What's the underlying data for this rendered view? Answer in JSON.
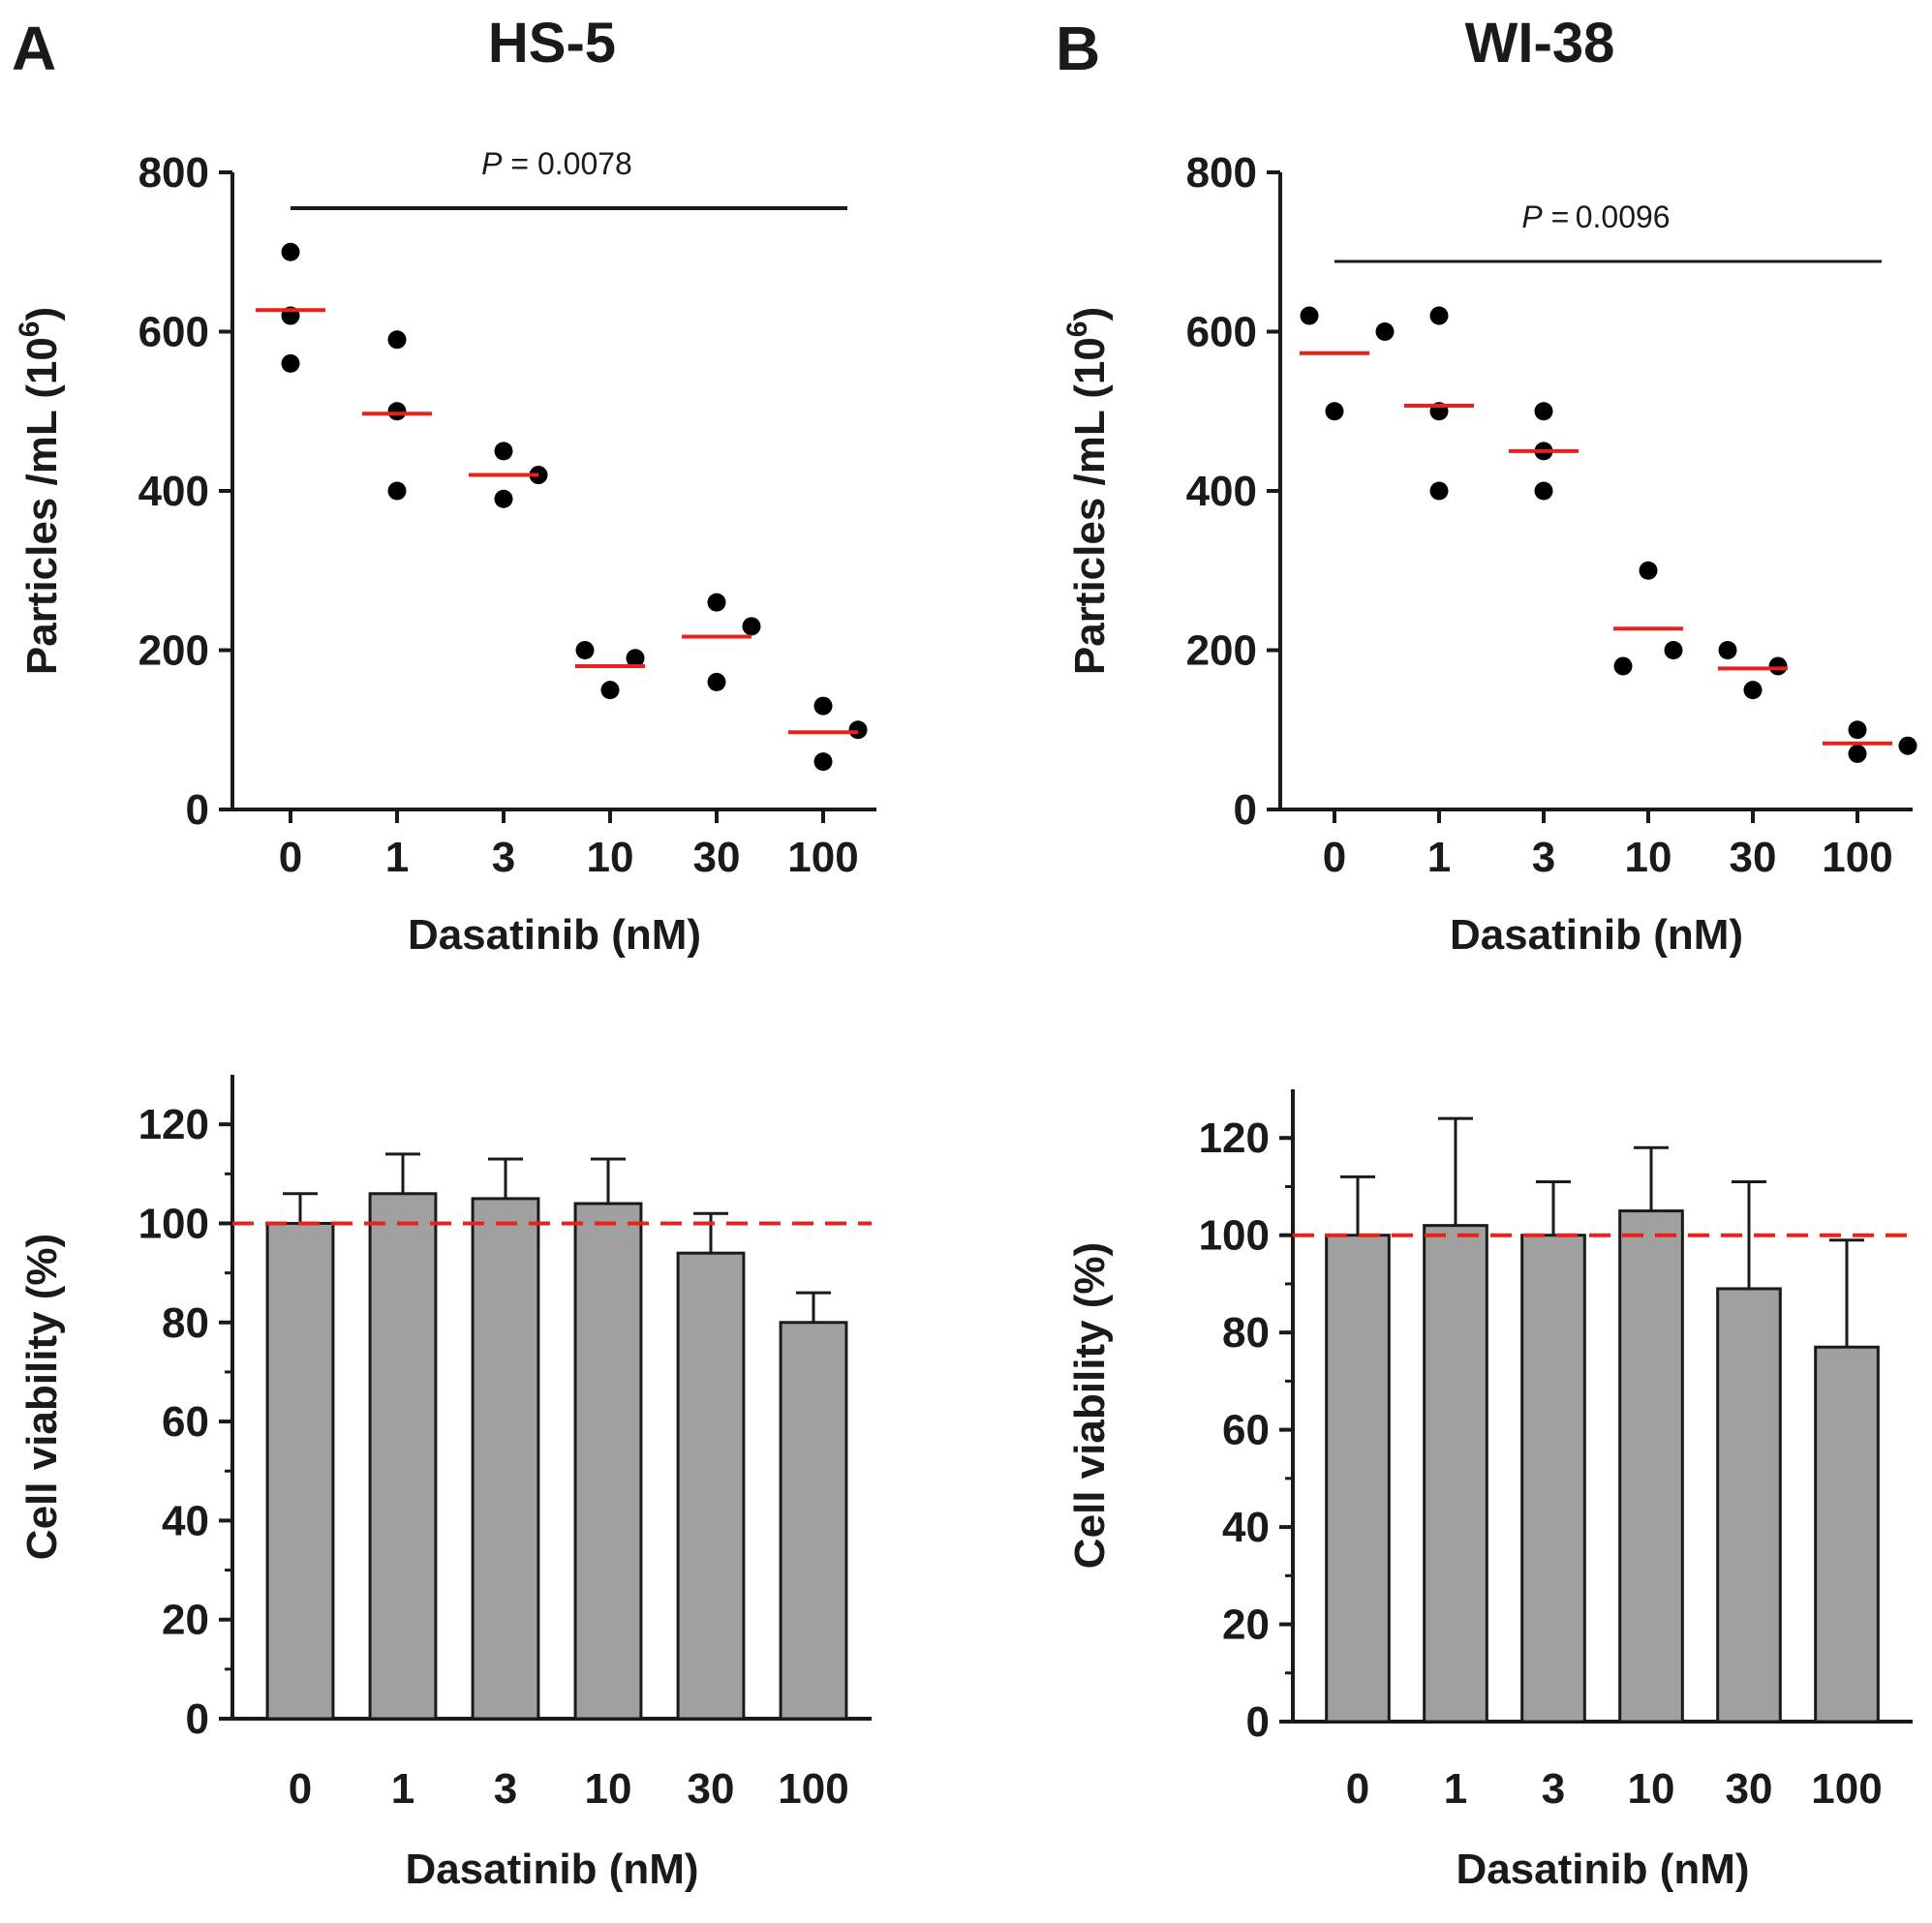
{
  "figure": {
    "panels": [
      {
        "letter": "A",
        "title": "HS-5"
      },
      {
        "letter": "B",
        "title": "WI-38"
      }
    ]
  },
  "colors": {
    "axis": "#1a1a1a",
    "point": "#000000",
    "mean_line": "#e8211c",
    "bar_fill": "#a0a0a0",
    "bar_stroke": "#1a1a1a",
    "reference_line": "#e8211c"
  },
  "chart_data": [
    {
      "id": "hs5-particles",
      "type": "scatter",
      "panel": "A",
      "categories": [
        "0",
        "1",
        "3",
        "10",
        "30",
        "100"
      ],
      "points": [
        [
          700,
          620,
          560
        ],
        [
          590,
          500,
          400
        ],
        [
          450,
          420,
          390
        ],
        [
          200,
          190,
          150
        ],
        [
          260,
          230,
          160
        ],
        [
          130,
          100,
          60
        ]
      ],
      "means": [
        627,
        497,
        420,
        180,
        217,
        97
      ],
      "xlabel": "Dasatinib (nM)",
      "ylabel": "Particles /mL (10",
      "ylabel_sup": "6",
      "ylabel_end": ")",
      "ylim": [
        0,
        800
      ],
      "yticks": [
        "0",
        "200",
        "400",
        "600",
        "800"
      ],
      "annotation": {
        "p_symbol": "P",
        "p_text": "= 0.0078",
        "from": "0",
        "to": "100"
      }
    },
    {
      "id": "wi38-particles",
      "type": "scatter",
      "panel": "B",
      "categories": [
        "0",
        "1",
        "3",
        "10",
        "30",
        "100"
      ],
      "points": [
        [
          620,
          600,
          500
        ],
        [
          620,
          500,
          400
        ],
        [
          500,
          450,
          400
        ],
        [
          300,
          200,
          180
        ],
        [
          200,
          180,
          150
        ],
        [
          100,
          80,
          70
        ]
      ],
      "means": [
        573,
        507,
        450,
        227,
        177,
        83
      ],
      "xlabel": "Dasatinib (nM)",
      "ylabel": "Particles /mL (10",
      "ylabel_sup": "6",
      "ylabel_end": ")",
      "ylim": [
        0,
        800
      ],
      "yticks": [
        "0",
        "200",
        "400",
        "600",
        "800"
      ],
      "annotation": {
        "p_symbol": "P",
        "p_text": "= 0.0096",
        "from": "0",
        "to": "100"
      }
    },
    {
      "id": "hs5-viability",
      "type": "bar",
      "panel": "A",
      "categories": [
        "0",
        "1",
        "3",
        "10",
        "30",
        "100"
      ],
      "values": [
        100,
        106,
        105,
        104,
        94,
        80
      ],
      "errors": [
        6,
        8,
        8,
        9,
        8,
        6
      ],
      "reference": 100,
      "xlabel": "Dasatinib (nM)",
      "ylabel": "Cell viability (%)",
      "ylim": [
        0,
        130
      ],
      "yticks": [
        "0",
        "20",
        "40",
        "60",
        "80",
        "100",
        "120"
      ]
    },
    {
      "id": "wi38-viability",
      "type": "bar",
      "panel": "B",
      "categories": [
        "0",
        "1",
        "3",
        "10",
        "30",
        "100"
      ],
      "values": [
        100,
        102,
        100,
        105,
        89,
        77
      ],
      "errors": [
        12,
        22,
        11,
        13,
        22,
        22
      ],
      "reference": 100,
      "xlabel": "Dasatinib (nM)",
      "ylabel": "Cell viability (%)",
      "ylim": [
        0,
        130
      ],
      "yticks": [
        "0",
        "20",
        "40",
        "60",
        "80",
        "100",
        "120"
      ]
    }
  ]
}
